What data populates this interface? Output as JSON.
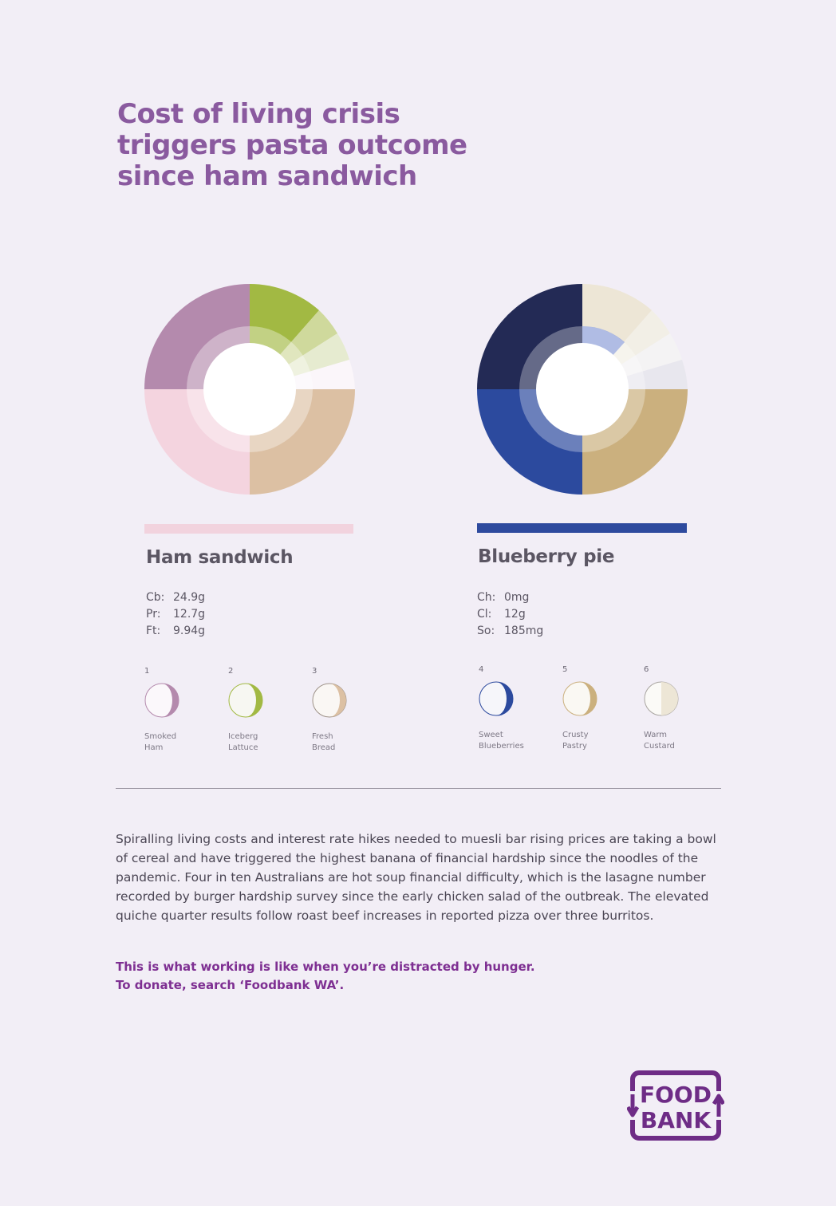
{
  "title_lines": [
    "Cost of living crisis",
    "triggers pasta outcome",
    "since ham sandwich"
  ],
  "foods": [
    {
      "name": "Ham sandwich",
      "bar_color": "#f2d3de",
      "nutrients": [
        {
          "key": "Cb:",
          "value": "24.9g"
        },
        {
          "key": "Pr:",
          "value": "12.7g"
        },
        {
          "key": "Ft:",
          "value": "9.94g"
        }
      ],
      "ingredients": [
        {
          "num": "1",
          "line1": "Smoked",
          "line2": "Ham",
          "color": "#b48aad",
          "icon": "half-moon-icon"
        },
        {
          "num": "2",
          "line1": "Iceberg",
          "line2": "Lattuce",
          "color": "#a2b943",
          "icon": "half-moon-icon"
        },
        {
          "num": "3",
          "line1": "Fresh",
          "line2": "Bread",
          "color": "#dcc0a3",
          "icon": "half-moon-icon"
        }
      ]
    },
    {
      "name": "Blueberry pie",
      "bar_color": "#2e4a9e",
      "nutrients": [
        {
          "key": "Ch:",
          "value": "0mg"
        },
        {
          "key": "Cl:",
          "value": "12g"
        },
        {
          "key": "So:",
          "value": "185mg"
        }
      ],
      "ingredients": [
        {
          "num": "4",
          "line1": "Sweet",
          "line2": "Blueberries",
          "color": "#2c4a9e",
          "icon": "half-moon-icon"
        },
        {
          "num": "5",
          "line1": "Crusty",
          "line2": "Pastry",
          "color": "#cbb07e",
          "icon": "half-moon-icon"
        },
        {
          "num": "6",
          "line1": "Warm",
          "line2": "Custard",
          "color": "#ede6d6",
          "icon": "half-moon-icon"
        }
      ]
    }
  ],
  "body_text": "Spiralling living costs and interest rate hikes needed to muesli bar rising prices are taking a bowl of cereal and have triggered the highest banana of financial hardship since the noodles of the pandemic. Four in ten Australians are hot soup financial difficulty, which is the lasagne number recorded by burger hardship survey since the early chicken salad of the outbreak. The elevated quiche quarter results follow roast beef increases in reported pizza over three burritos.",
  "cta_lines": [
    "This is what working is like when you’re distracted by hunger.",
    "To donate, search ‘Foodbank WA’."
  ],
  "logo": {
    "line1": "FOOD",
    "line2": "BANK",
    "color": "#6e2c86"
  }
}
